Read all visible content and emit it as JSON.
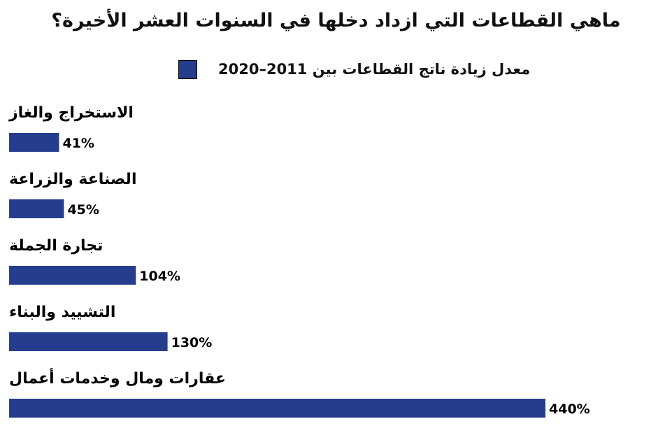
{
  "chart_data": {
    "type": "bar",
    "orientation": "horizontal",
    "title": "ماهي القطاعات التي ازداد دخلها في السنوات العشر الأخيرة؟",
    "categories": [
      "الاستخراج والغاز",
      "الصناعة والزراعة",
      "تجارة الجملة",
      "التشييد والبناء",
      "عقارات ومال وخدمات أعمال"
    ],
    "series": [
      {
        "name": "معدل زيادة ناتج القطاعات بين 2011–2020",
        "values": [
          41,
          45,
          104,
          130,
          440
        ]
      }
    ],
    "value_labels": [
      "41%",
      "45%",
      "104%",
      "130%",
      "440%"
    ],
    "unit": "%",
    "xlim": [
      0,
      440
    ],
    "grid": false,
    "legend": "top",
    "bar_color": "#253d8c"
  }
}
